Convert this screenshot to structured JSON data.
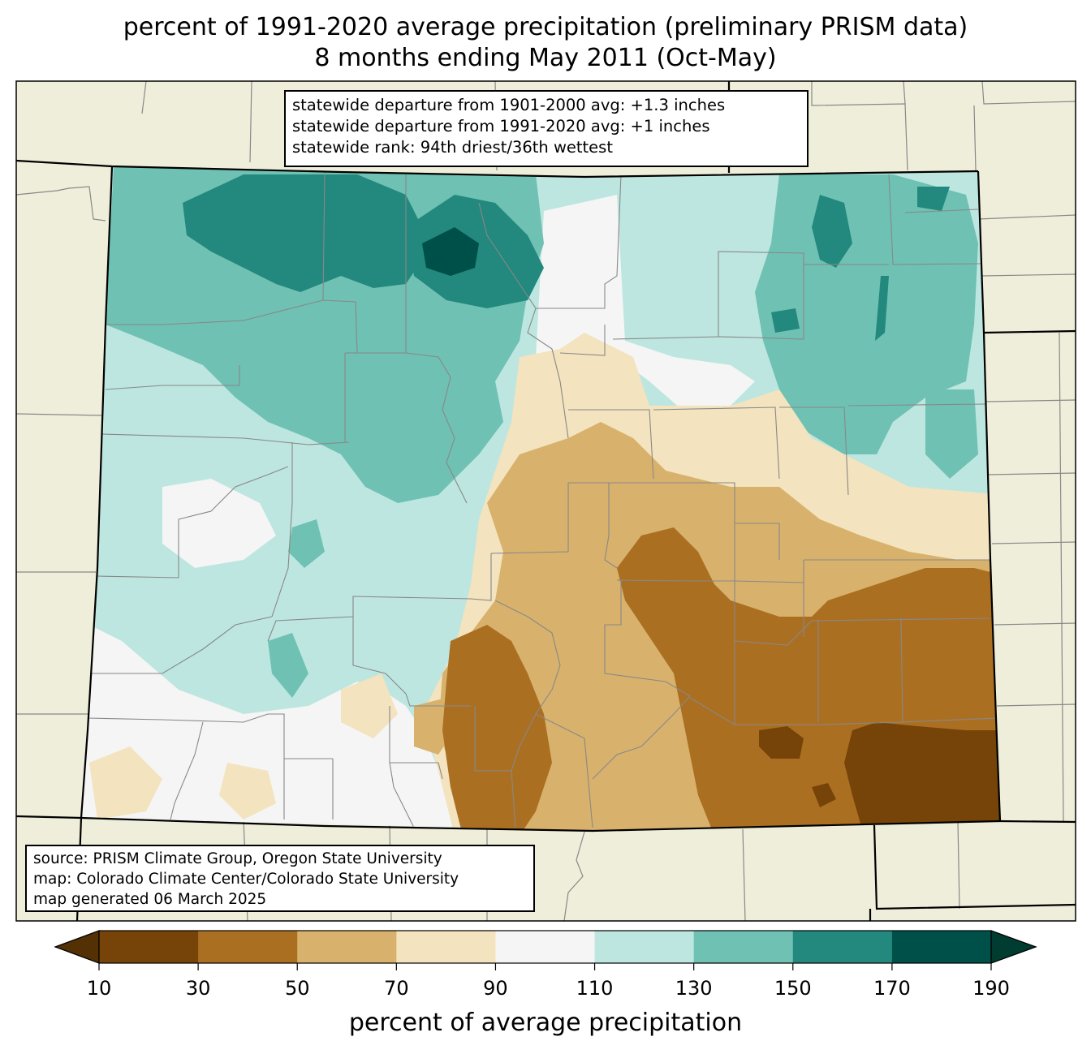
{
  "title": {
    "line1": "percent of 1991-2020 average precipitation (preliminary PRISM data)",
    "line2": "8 months ending May 2011 (Oct-May)"
  },
  "stats": {
    "line1": "statewide departure from 1901-2000 avg: +1.3 inches",
    "line2": "statewide departure from 1991-2020 avg: +1 inches",
    "line3": "statewide rank: 94th driest/36th wettest"
  },
  "source": {
    "line1": "source: PRISM Climate Group, Oregon State University",
    "line2": "map: Colorado Climate Center/Colorado State University",
    "line3": "map generated 06 March 2025"
  },
  "colorbar": {
    "label": "percent of average precipitation",
    "ticks": [
      "10",
      "30",
      "50",
      "70",
      "90",
      "110",
      "130",
      "150",
      "170",
      "190"
    ],
    "bins": [
      {
        "range": "10-30",
        "color": "#764309"
      },
      {
        "range": "30-50",
        "color": "#ab6f22"
      },
      {
        "range": "50-70",
        "color": "#d8b26c"
      },
      {
        "range": "70-90",
        "color": "#f3e3be"
      },
      {
        "range": "90-110",
        "color": "#f4f5f4"
      },
      {
        "range": "110-130",
        "color": "#bde6e0"
      },
      {
        "range": "130-150",
        "color": "#6fc1b3"
      },
      {
        "range": "150-170",
        "color": "#23887d"
      },
      {
        "range": "170-190",
        "color": "#00504a"
      }
    ],
    "under_color": "#543005",
    "over_color": "#003c30"
  },
  "colors": {
    "land": "#efeedb",
    "state_border": "#000000",
    "county_border": "#888888"
  }
}
